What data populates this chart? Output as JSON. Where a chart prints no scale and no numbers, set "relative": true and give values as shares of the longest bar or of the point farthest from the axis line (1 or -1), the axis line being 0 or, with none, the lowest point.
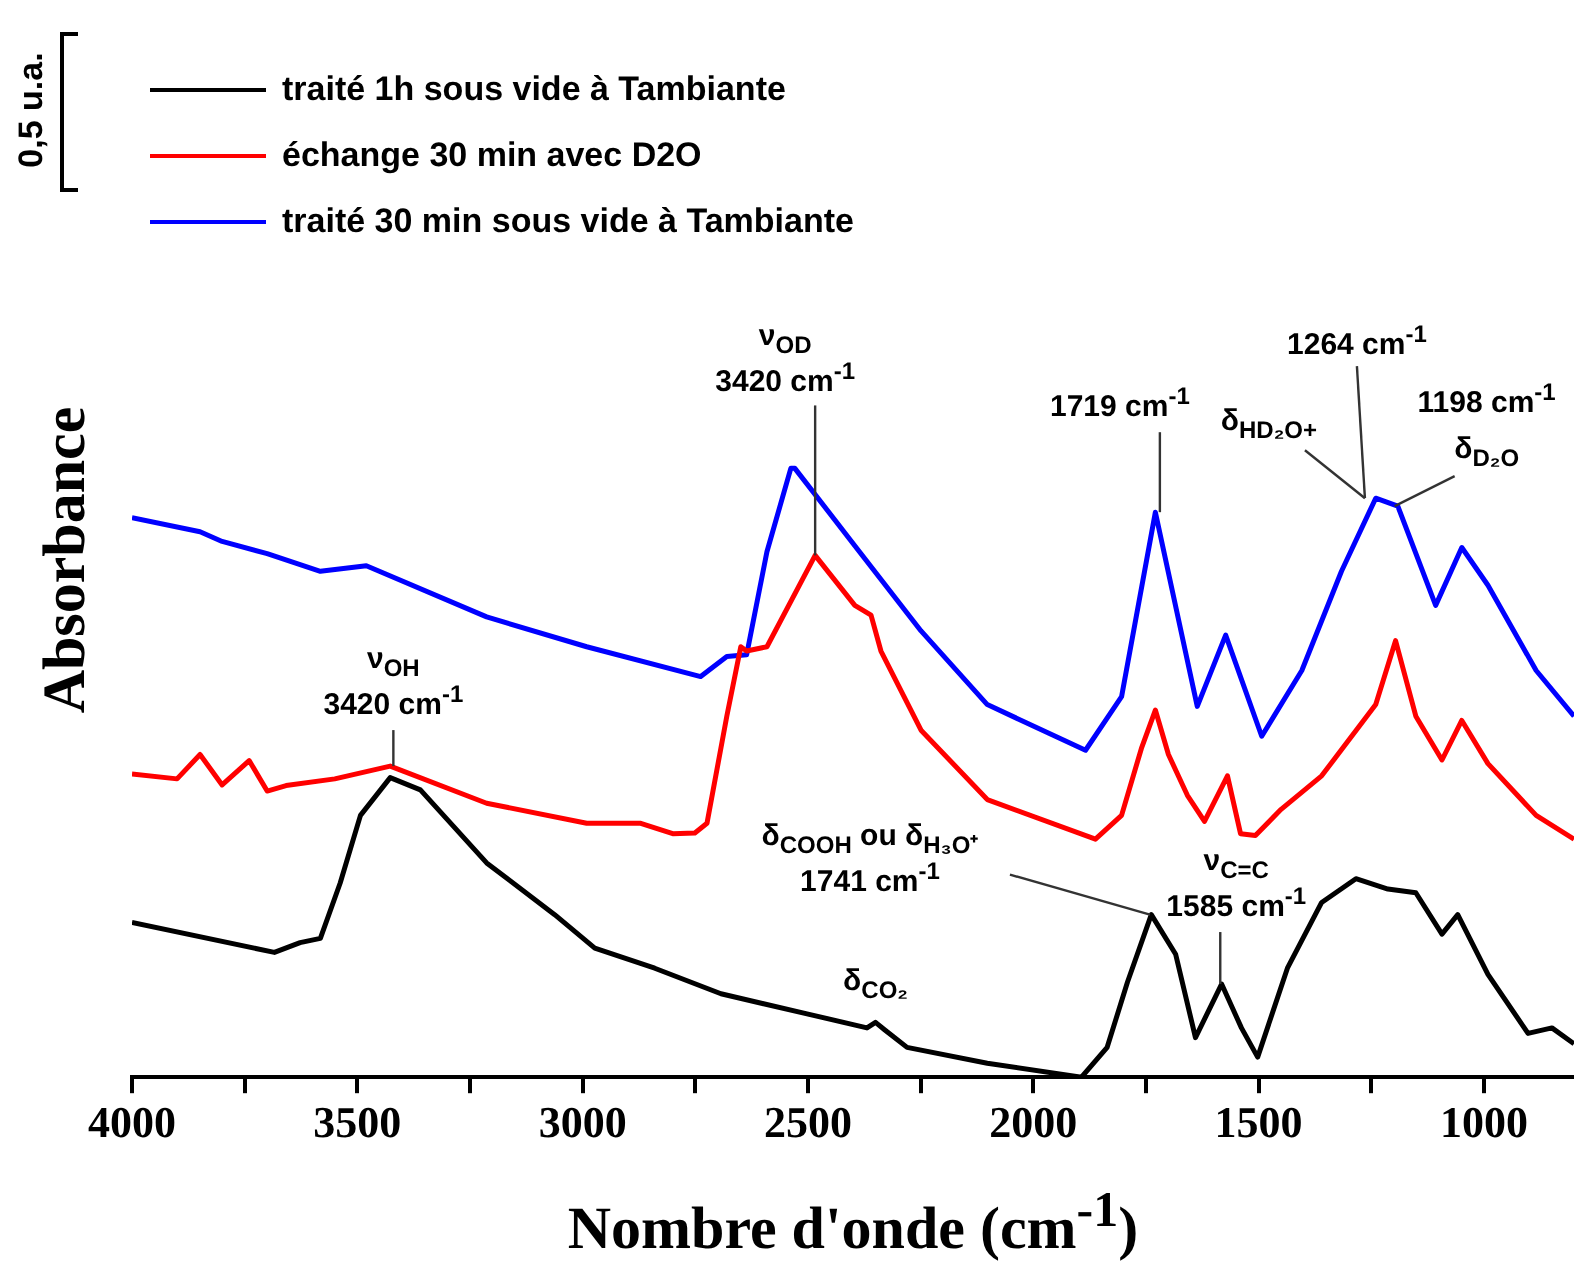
{
  "chart_data": {
    "type": "line",
    "relative": true,
    "xlabel": "Nombre d'onde (cm$^{-1}$)",
    "ylabel": "Absorbance",
    "xlim": [
      4000,
      800
    ],
    "xticks": [
      4000,
      {
        "value": 3750,
        "label": null
      },
      3500,
      {
        "value": 3250,
        "label": null
      },
      3000,
      {
        "value": 2750,
        "label": null
      },
      2500,
      {
        "value": 2250,
        "label": null
      },
      2000,
      {
        "value": 1750,
        "label": null
      },
      1500,
      {
        "value": 1250,
        "label": null
      },
      1000
    ],
    "legend": "top left",
    "marker": "none",
    "line_style": "solid",
    "series": [
      {
        "name": "traité 1h sous vide à Tambiante",
        "color": "#000000",
        "x": [
          4000,
          3684,
          3627,
          3582,
          3538,
          3493,
          3427,
          3360,
          3213,
          3062,
          2973,
          2840,
          2693,
          2502,
          2369,
          2350,
          2330,
          2280,
          2102,
          1893,
          1836,
          1791,
          1738,
          1684,
          1640,
          1582,
          1538,
          1502,
          1436,
          1360,
          1284,
          1213,
          1151,
          1093,
          1058,
          991,
          902,
          849,
          800
        ],
        "values": [
          0.254,
          0.205,
          0.221,
          0.228,
          0.319,
          0.43,
          0.492,
          0.472,
          0.352,
          0.267,
          0.212,
          0.179,
          0.137,
          0.104,
          0.081,
          0.09,
          0.078,
          0.049,
          0.023,
          0,
          0.049,
          0.156,
          0.267,
          0.202,
          0.065,
          0.153,
          0.081,
          0.033,
          0.179,
          0.287,
          0.326,
          0.309,
          0.303,
          0.235,
          0.267,
          0.169,
          0.072,
          0.081,
          0.055
        ]
      },
      {
        "name": "échange 30 min avec D2O",
        "color": "#ff0000",
        "x": [
          4000,
          3900,
          3849,
          3800,
          3740,
          3700,
          3658,
          3550,
          3427,
          3213,
          2991,
          2871,
          2800,
          2751,
          2724,
          2680,
          2649,
          2636,
          2591,
          2484,
          2396,
          2360,
          2338,
          2249,
          2102,
          1862,
          1804,
          1760,
          1729,
          1700,
          1658,
          1620,
          1569,
          1540,
          1507,
          1450,
          1360,
          1240,
          1196,
          1151,
          1093,
          1049,
          991,
          884,
          800
        ],
        "values": [
          0.498,
          0.49,
          0.53,
          0.48,
          0.52,
          0.47,
          0.479,
          0.49,
          0.511,
          0.45,
          0.417,
          0.417,
          0.4,
          0.401,
          0.417,
          0.593,
          0.707,
          0.7,
          0.707,
          0.857,
          0.775,
          0.759,
          0.7,
          0.57,
          0.456,
          0.391,
          0.43,
          0.54,
          0.603,
          0.53,
          0.463,
          0.42,
          0.495,
          0.4,
          0.397,
          0.44,
          0.495,
          0.612,
          0.717,
          0.593,
          0.521,
          0.586,
          0.515,
          0.43,
          0.391
        ]
      },
      {
        "name": "traité 30 min sous vide à Tambiante",
        "color": "#0000ff",
        "x": [
          4000,
          3849,
          3800,
          3700,
          3582,
          3480,
          3213,
          2991,
          2738,
          2680,
          2636,
          2591,
          2538,
          2529,
          2396,
          2249,
          2102,
          1884,
          1804,
          1729,
          1636,
          1573,
          1493,
          1404,
          1316,
          1240,
          1191,
          1107,
          1049,
          991,
          884,
          800
        ],
        "values": [
          0.919,
          0.896,
          0.88,
          0.86,
          0.831,
          0.84,
          0.756,
          0.707,
          0.658,
          0.691,
          0.694,
          0.863,
          1,
          1,
          0.873,
          0.733,
          0.612,
          0.537,
          0.625,
          0.928,
          0.609,
          0.726,
          0.56,
          0.668,
          0.831,
          0.951,
          0.938,
          0.775,
          0.87,
          0.808,
          0.668,
          0.593
        ]
      }
    ],
    "annotations": [
      {
        "text": "ν$_{OH}$\n3420 cm$^{-1}$",
        "x": 3420,
        "y": 0.511
      },
      {
        "text": "ν$_{OD}$\n3420 cm$^{-1}$",
        "x": 2484,
        "y": 0.857
      },
      {
        "text": "1719 cm$^{-1}$",
        "x": 1719,
        "y": 0.928
      },
      {
        "text": "1264 cm$^{-1}$",
        "x": 1264,
        "y": 0.951
      },
      {
        "text": "δ$_{HD₂O+}$",
        "x": 1264,
        "y": 0.951
      },
      {
        "text": "1198 cm$^{-1}$",
        "x": 1198,
        "y": 0.938
      },
      {
        "text": "δ$_{D₂O}$",
        "x": 1198,
        "y": 0.938
      },
      {
        "text": "δ$_{COOH}$ ou δ$_{H₃O⁺}$\n1741 cm$^{-1}$",
        "x": 1741,
        "y": 0.267
      },
      {
        "text": "ν$_{C=C}$\n1585 cm$^{-1}$",
        "x": 1585,
        "y": 0.153
      },
      {
        "text": "δ$_{CO₂}$",
        "x": 2350,
        "y": 0.09
      },
      "0,5 u.a."
    ]
  }
}
